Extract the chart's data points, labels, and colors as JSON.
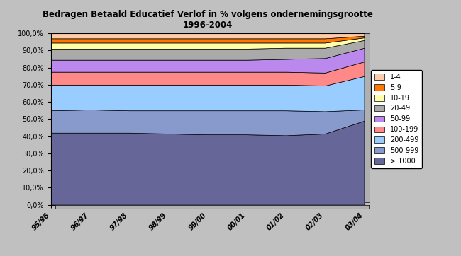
{
  "title": "Bedragen Betaald Educatief Verlof in % volgens ondernemingsgrootte\n1996-2004",
  "categories": [
    "95/96",
    "96/97",
    "97/98",
    "98/99",
    "99/00",
    "00/01",
    "01/02",
    "02/03",
    "03/04"
  ],
  "series": {
    "> 1000": [
      42.0,
      42.0,
      42.0,
      41.5,
      41.0,
      41.0,
      40.5,
      41.5,
      49.0
    ],
    "500-999": [
      13.0,
      13.5,
      13.0,
      13.5,
      14.0,
      14.0,
      14.5,
      13.0,
      6.5
    ],
    "200-499": [
      15.0,
      14.5,
      15.0,
      15.0,
      15.0,
      15.0,
      15.0,
      15.0,
      19.5
    ],
    "100-199": [
      7.5,
      7.5,
      7.5,
      7.5,
      7.5,
      7.5,
      7.5,
      7.5,
      8.5
    ],
    "50-99": [
      7.0,
      7.0,
      7.0,
      7.0,
      7.0,
      7.0,
      7.5,
      8.5,
      8.0
    ],
    "20-49": [
      6.5,
      6.5,
      6.5,
      6.5,
      6.5,
      6.5,
      6.5,
      6.0,
      4.5
    ],
    "10-19": [
      3.5,
      3.5,
      3.5,
      3.5,
      3.5,
      3.5,
      3.0,
      3.0,
      1.5
    ],
    "5-9": [
      2.5,
      2.5,
      2.5,
      2.5,
      2.5,
      2.5,
      2.5,
      2.5,
      1.0
    ],
    "1-4": [
      3.0,
      3.0,
      3.0,
      3.0,
      3.0,
      3.0,
      3.0,
      3.0,
      1.5
    ]
  },
  "colors": {
    "> 1000": "#666699",
    "500-999": "#8899cc",
    "200-499": "#99ccff",
    "100-199": "#ff8888",
    "50-99": "#bb88ee",
    "20-49": "#aaaaaa",
    "10-19": "#ffffaa",
    "5-9": "#ff7700",
    "1-4": "#ffccaa"
  },
  "background_color": "#c0c0c0",
  "plot_background": "#d8d8d8",
  "ylim": [
    0,
    100
  ]
}
